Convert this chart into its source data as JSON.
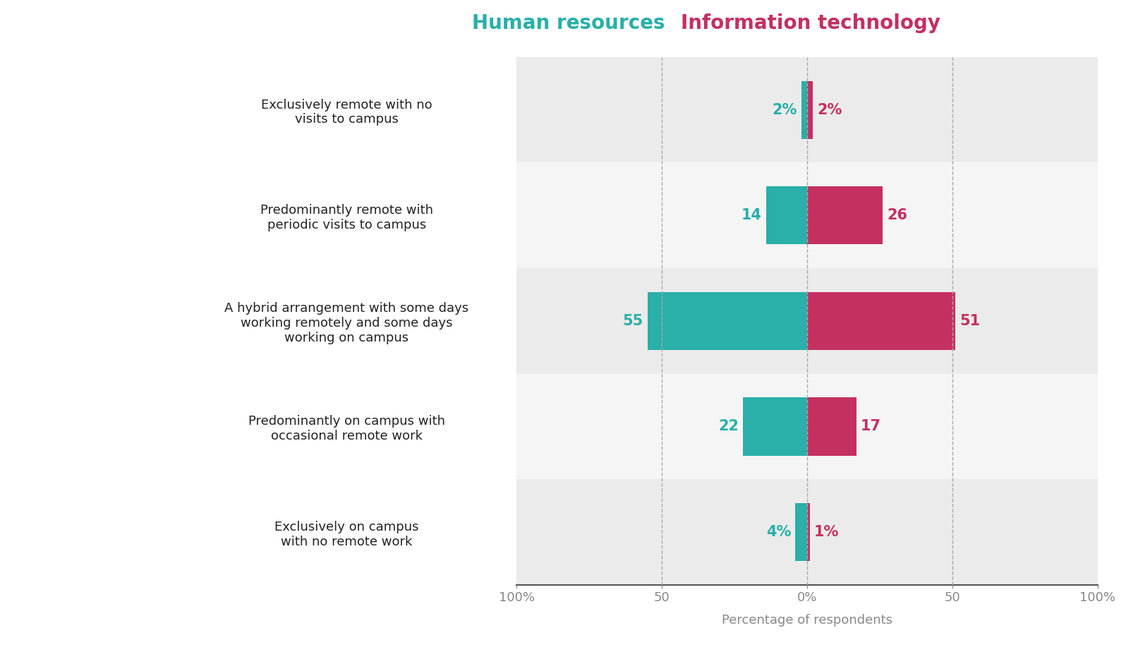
{
  "categories": [
    "Exclusively remote with no\nvisits to campus",
    "Predominantly remote with\nperiodic visits to campus",
    "A hybrid arrangement with some days\nworking remotely and some days\nworking on campus",
    "Predominantly on campus with\noccasional remote work",
    "Exclusively on campus\nwith no remote work"
  ],
  "hr_values": [
    2,
    14,
    55,
    22,
    4
  ],
  "it_values": [
    2,
    26,
    51,
    17,
    1
  ],
  "hr_color": "#2AAFA9",
  "it_color": "#C43060",
  "hr_label": "Human resources",
  "it_label": "Information technology",
  "xlabel": "Percentage of respondents",
  "xlim": [
    -100,
    100
  ],
  "xticks": [
    -100,
    -50,
    0,
    50,
    100
  ],
  "xticklabels": [
    "100%",
    "50",
    "0%",
    "50",
    "100%"
  ],
  "bg_color_odd": "#EBEBEB",
  "bg_color_even": "#F5F5F5",
  "bar_height": 0.55,
  "legend_fontsize": 20,
  "label_fontsize": 13,
  "tick_fontsize": 13,
  "value_fontsize": 15,
  "axis_label_fontsize": 13,
  "grid_color": "#AAAAAA",
  "figsize": [
    15.96,
    9.41
  ],
  "dpi": 100
}
